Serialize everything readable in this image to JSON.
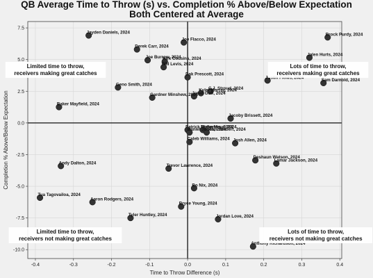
{
  "chart_data": {
    "type": "scatter",
    "title": "QB Average Time to Throw (s) vs. Completion % Above/Below Expectation",
    "subtitle": "Both Centered at Average",
    "xlabel": "Time to Throw Difference (s)",
    "ylabel": "Completion % Above/Below Expectation",
    "xlim": [
      -0.42,
      0.405
    ],
    "ylim": [
      -10.7,
      8.0
    ],
    "x_ticks": [
      "-0.4",
      "-0.3",
      "-0.2",
      "-0.1",
      "0.0",
      "0.1",
      "0.2",
      "0.3",
      "0.4"
    ],
    "y_ticks": [
      "7.5",
      "5.0",
      "2.5",
      "0.0",
      "-2.5",
      "-5.0",
      "-7.5",
      "-10.0"
    ],
    "grid": true,
    "reference_lines": {
      "x": 0,
      "y": 0
    },
    "quadrant_annotations": [
      {
        "id": "top-left",
        "lines": [
          "Limited time to throw,",
          "receivers making great catches"
        ]
      },
      {
        "id": "top-right",
        "lines": [
          "Lots of time to throw,",
          "receivers making great catches"
        ]
      },
      {
        "id": "bottom-left",
        "lines": [
          "Limited time to throw,",
          "receivers not making great catches"
        ]
      },
      {
        "id": "bottom-right",
        "lines": [
          "Lots of time to throw,",
          "receivers not making great catches"
        ]
      }
    ],
    "points": [
      {
        "label": "Jayden Daniels, 2024",
        "x": -0.26,
        "y": 6.9
      },
      {
        "label": "Joe Flacco, 2024",
        "x": -0.01,
        "y": 6.35
      },
      {
        "label": "Brock Purdy, 2024",
        "x": 0.368,
        "y": 6.75
      },
      {
        "label": "Derek Carr, 2024",
        "x": -0.133,
        "y": 5.8
      },
      {
        "label": "Jalen Hurts, 2024",
        "x": 0.32,
        "y": 5.15
      },
      {
        "label": "Joe Burrow, 2024",
        "x": -0.105,
        "y": 4.95
      },
      {
        "label": "Kirk Cousins, 2024",
        "x": -0.06,
        "y": 4.85
      },
      {
        "label": "Will Levis, 2024",
        "x": -0.063,
        "y": 4.4
      },
      {
        "label": "Dak Prescott, 2024",
        "x": 0.0,
        "y": 3.6
      },
      {
        "label": "Justin Fields, 2024",
        "x": 0.21,
        "y": 3.35
      },
      {
        "label": "Sam Darnold, 2024",
        "x": 0.357,
        "y": 3.15
      },
      {
        "label": "Geno Smith, 2024",
        "x": -0.183,
        "y": 2.8
      },
      {
        "label": "C.J. Stroud, 2024",
        "x": 0.06,
        "y": 2.5
      },
      {
        "label": "Kyler Murray, 2024",
        "x": 0.035,
        "y": 2.35
      },
      {
        "label": "Jared Goff, 2024",
        "x": 0.017,
        "y": 2.1
      },
      {
        "label": "Gardner Minshew, 2024",
        "x": -0.093,
        "y": 2.0
      },
      {
        "label": "Baker Mayfield, 2024",
        "x": -0.338,
        "y": 1.25
      },
      {
        "label": "Jacoby Brissett, 2024",
        "x": 0.113,
        "y": 0.35
      },
      {
        "label": "Patrick Mahomes, 2024",
        "x": 0.0,
        "y": -0.55
      },
      {
        "label": "Drake Maye, 2024",
        "x": 0.04,
        "y": -0.55
      },
      {
        "label": "Daniel Jones, 2024",
        "x": 0.005,
        "y": -0.75
      },
      {
        "label": "Justin Herbert, 2024",
        "x": 0.05,
        "y": -0.75
      },
      {
        "label": "Caleb Williams, 2024",
        "x": 0.005,
        "y": -1.5
      },
      {
        "label": "Josh Allen, 2024",
        "x": 0.125,
        "y": -1.6
      },
      {
        "label": "Deshaun Watson, 2024",
        "x": 0.178,
        "y": -2.95
      },
      {
        "label": "Lamar Jackson, 2024",
        "x": 0.233,
        "y": -3.2
      },
      {
        "label": "Andy Dalton, 2024",
        "x": -0.333,
        "y": -3.4
      },
      {
        "label": "Trevor Lawrence, 2024",
        "x": -0.05,
        "y": -3.6
      },
      {
        "label": "Bo Nix, 2024",
        "x": 0.017,
        "y": -5.15
      },
      {
        "label": "Tua Tagovailoa, 2024",
        "x": -0.388,
        "y": -5.9
      },
      {
        "label": "Aaron Rodgers, 2024",
        "x": -0.25,
        "y": -6.25
      },
      {
        "label": "Bryce Young, 2024",
        "x": -0.017,
        "y": -6.6
      },
      {
        "label": "Tyler Huntley, 2024",
        "x": -0.15,
        "y": -7.5
      },
      {
        "label": "Jordan Love, 2024",
        "x": 0.08,
        "y": -7.6
      },
      {
        "label": "Anthony Richardson, 2024",
        "x": 0.172,
        "y": -9.75
      }
    ]
  }
}
